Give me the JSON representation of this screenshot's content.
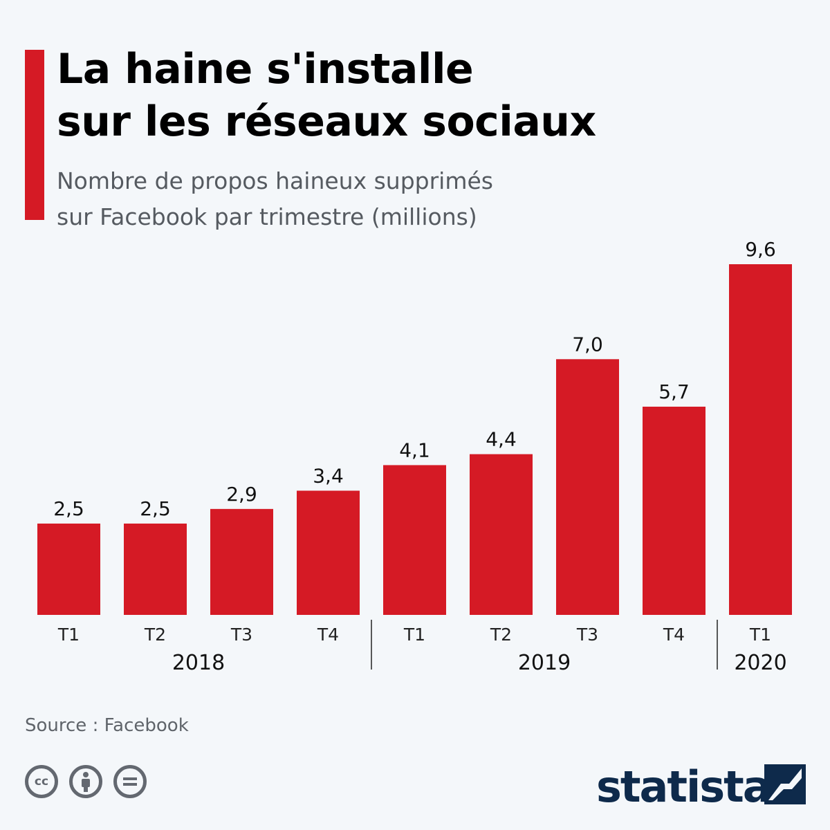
{
  "header": {
    "title_lines": [
      "La haine s'installe",
      "sur les réseaux sociaux"
    ],
    "subtitle_lines": [
      "Nombre de propos haineux supprimés",
      "sur Facebook par trimestre (millions)"
    ]
  },
  "chart_data": {
    "type": "bar",
    "categories": [
      "T1",
      "T2",
      "T3",
      "T4",
      "T1",
      "T2",
      "T3",
      "T4",
      "T1"
    ],
    "groups": [
      {
        "label": "2018",
        "start": 0,
        "end": 3
      },
      {
        "label": "2019",
        "start": 4,
        "end": 7
      },
      {
        "label": "2020",
        "start": 8,
        "end": 8
      }
    ],
    "values": [
      2.5,
      2.5,
      2.9,
      3.4,
      4.1,
      4.4,
      7.0,
      5.7,
      9.6
    ],
    "value_labels": [
      "2,5",
      "2,5",
      "2,9",
      "3,4",
      "4,1",
      "4,4",
      "7,0",
      "5,7",
      "9,6"
    ],
    "bar_color": "#d51a25",
    "ylim": [
      0,
      9.6
    ],
    "grid": false,
    "title": "La haine s'installe sur les réseaux sociaux",
    "xlabel": "",
    "ylabel": ""
  },
  "footer": {
    "source": "Source : Facebook",
    "brand": "statista",
    "license_icons": [
      {
        "name": "cc-icon",
        "glyph": "cc"
      },
      {
        "name": "attribution-icon",
        "glyph": "person"
      },
      {
        "name": "no-derivatives-icon",
        "glyph": "="
      }
    ]
  }
}
